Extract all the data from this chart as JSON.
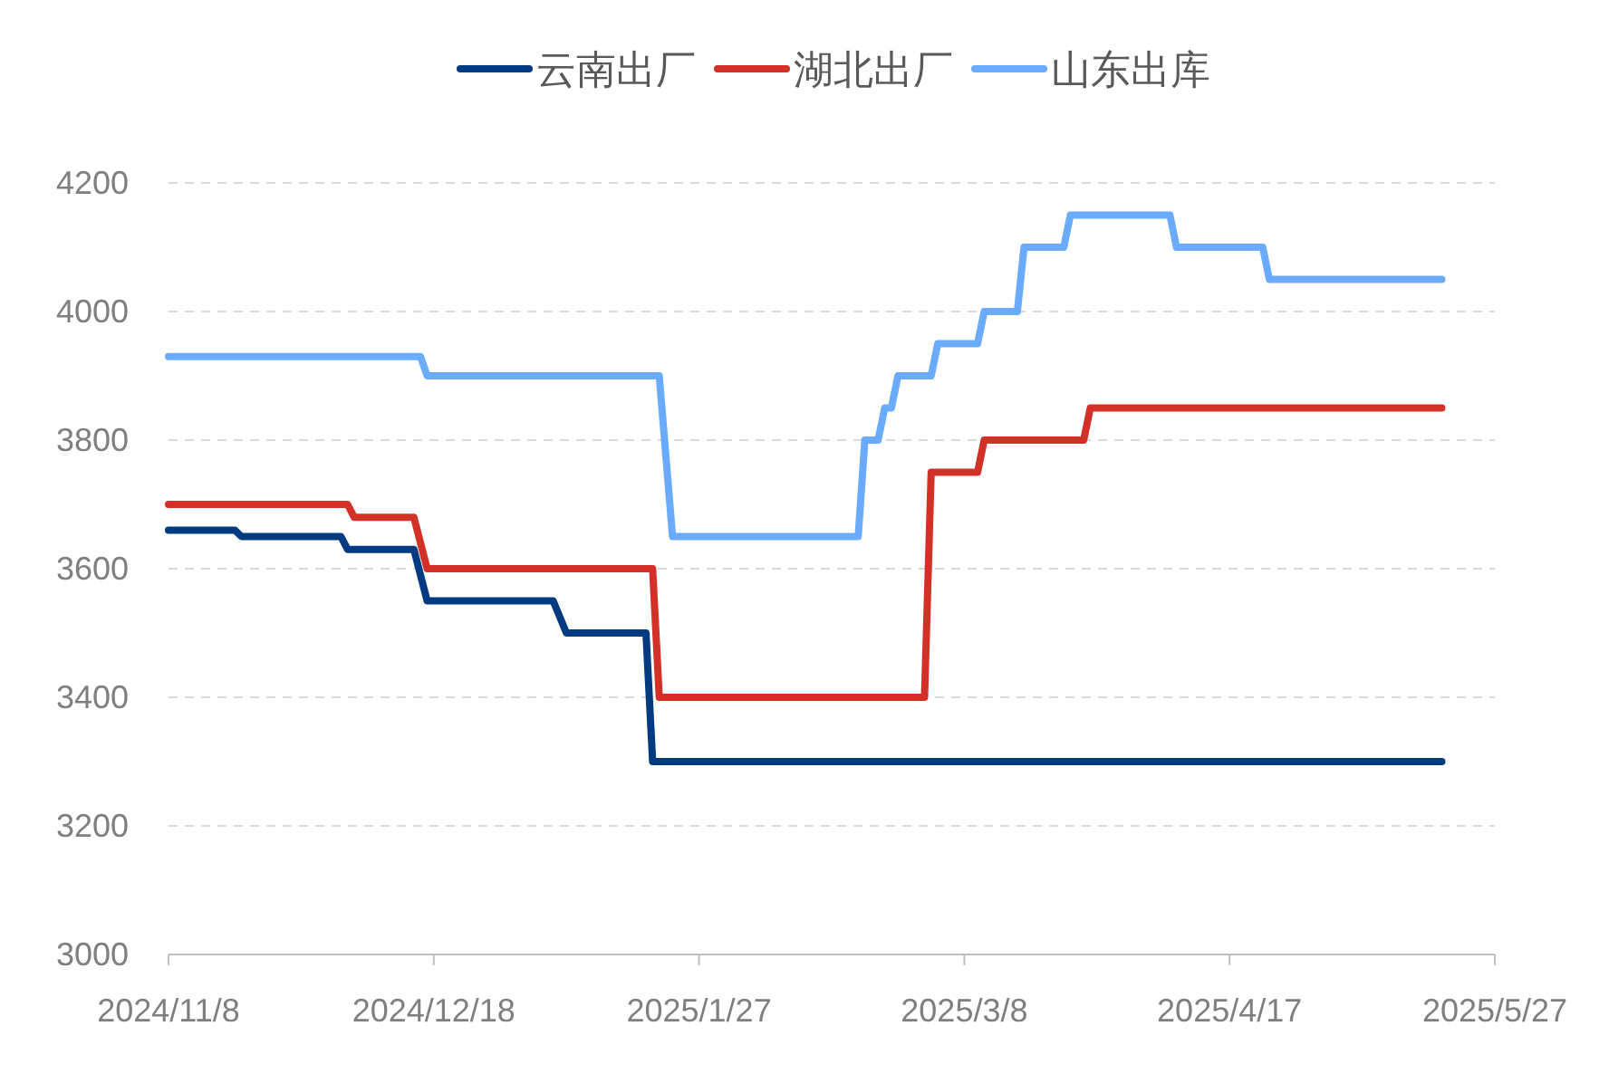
{
  "chart_data": {
    "type": "line",
    "xlim": [
      "2024-11-08",
      "2025-05-27"
    ],
    "xticks": [
      {
        "value": "2024-11-08",
        "label": "2024/11/8"
      },
      {
        "value": "2024-12-18",
        "label": "2024/12/18"
      },
      {
        "value": "2025-01-27",
        "label": "2025/1/27"
      },
      {
        "value": "2025-03-08",
        "label": "2025/3/8"
      },
      {
        "value": "2025-04-17",
        "label": "2025/4/17"
      },
      {
        "value": "2025-05-27",
        "label": "2025/5/27"
      }
    ],
    "ylim": [
      3000,
      4200
    ],
    "yticks": [
      3000,
      3200,
      3400,
      3600,
      3800,
      4000,
      4200
    ],
    "grid": "y",
    "legend": "top",
    "marker": "none",
    "line_style": "solid",
    "series": [
      {
        "name": "云南出厂",
        "color": "#003a80",
        "x": [
          "2024-11-08",
          "2024-11-18",
          "2024-11-19",
          "2024-12-04",
          "2024-12-05",
          "2024-12-15",
          "2024-12-17",
          "2025-01-05",
          "2025-01-07",
          "2025-01-19",
          "2025-01-20",
          "2025-05-19"
        ],
        "values": [
          3660,
          3660,
          3650,
          3650,
          3630,
          3630,
          3550,
          3550,
          3500,
          3500,
          3300,
          3300
        ]
      },
      {
        "name": "湖北出厂",
        "color": "#d33027",
        "x": [
          "2024-11-08",
          "2024-12-05",
          "2024-12-06",
          "2024-12-15",
          "2024-12-17",
          "2025-01-20",
          "2025-01-21",
          "2025-03-02",
          "2025-03-03",
          "2025-03-10",
          "2025-03-11",
          "2025-03-26",
          "2025-03-27",
          "2025-05-19"
        ],
        "values": [
          3700,
          3700,
          3680,
          3680,
          3600,
          3600,
          3400,
          3400,
          3750,
          3750,
          3800,
          3800,
          3850,
          3850
        ]
      },
      {
        "name": "山东出库",
        "color": "#6aaaff",
        "x": [
          "2024-11-08",
          "2024-12-16",
          "2024-12-17",
          "2025-01-21",
          "2025-01-23",
          "2025-02-20",
          "2025-02-21",
          "2025-02-23",
          "2025-02-24",
          "2025-02-25",
          "2025-02-26",
          "2025-03-03",
          "2025-03-04",
          "2025-03-10",
          "2025-03-11",
          "2025-03-16",
          "2025-03-17",
          "2025-03-23",
          "2025-03-24",
          "2025-04-08",
          "2025-04-09",
          "2025-04-22",
          "2025-04-23",
          "2025-05-19"
        ],
        "values": [
          3930,
          3930,
          3900,
          3900,
          3650,
          3650,
          3800,
          3800,
          3850,
          3850,
          3900,
          3900,
          3950,
          3950,
          4000,
          4000,
          4100,
          4100,
          4150,
          4150,
          4100,
          4100,
          4050,
          4050
        ]
      }
    ]
  }
}
